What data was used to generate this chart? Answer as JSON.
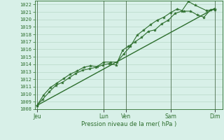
{
  "xlabel": "Pression niveau de la mer( hPa )",
  "ylim": [
    1008,
    1022.5
  ],
  "yticks": [
    1008,
    1009,
    1010,
    1011,
    1012,
    1013,
    1014,
    1015,
    1016,
    1017,
    1018,
    1019,
    1020,
    1021,
    1022
  ],
  "bg_color": "#d8f0e8",
  "grid_color": "#b8d8c8",
  "line_color": "#2d6e2d",
  "day_labels": [
    "Jeu",
    "Lun",
    "Ven",
    "Sam",
    "Dim"
  ],
  "day_positions": [
    0.0,
    3.0,
    4.0,
    6.0,
    8.0
  ],
  "series1_x": [
    0.0,
    0.25,
    0.55,
    0.85,
    1.15,
    1.45,
    1.75,
    2.05,
    2.35,
    2.65,
    2.95,
    3.25,
    3.55,
    3.85,
    4.1,
    4.4,
    4.7,
    5.0,
    5.3,
    5.6,
    5.9,
    6.2,
    6.5,
    6.8,
    7.1,
    7.6,
    8.0
  ],
  "series1_y": [
    1008.5,
    1009.3,
    1010.3,
    1011.2,
    1011.6,
    1012.2,
    1012.8,
    1013.2,
    1013.4,
    1013.6,
    1013.9,
    1014.1,
    1013.9,
    1015.9,
    1016.4,
    1017.0,
    1017.6,
    1018.4,
    1018.6,
    1019.4,
    1019.9,
    1020.8,
    1021.1,
    1022.4,
    1021.9,
    1021.2,
    1021.3
  ],
  "series2_x": [
    0.0,
    0.3,
    0.6,
    0.9,
    1.2,
    1.5,
    1.8,
    2.1,
    2.4,
    2.7,
    3.0,
    3.3,
    3.6,
    3.9,
    4.2,
    4.5,
    4.8,
    5.1,
    5.4,
    5.7,
    6.0,
    6.3,
    6.6,
    6.9,
    7.2,
    7.5,
    7.8,
    8.0
  ],
  "series2_y": [
    1008.5,
    1009.9,
    1010.9,
    1011.5,
    1012.1,
    1012.7,
    1013.1,
    1013.6,
    1013.8,
    1013.7,
    1014.3,
    1014.3,
    1014.3,
    1015.4,
    1016.4,
    1017.9,
    1018.6,
    1019.3,
    1019.9,
    1020.3,
    1020.9,
    1021.4,
    1021.1,
    1021.1,
    1020.6,
    1020.3,
    1021.3,
    1021.4
  ],
  "trend_x": [
    0.0,
    8.0
  ],
  "trend_y": [
    1008.5,
    1021.5
  ],
  "xlim": [
    -0.1,
    8.35
  ]
}
